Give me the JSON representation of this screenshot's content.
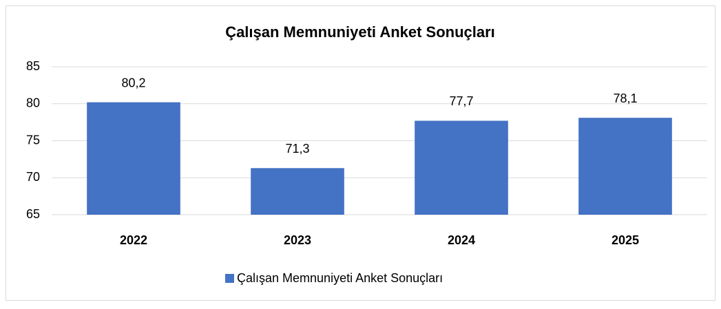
{
  "chart_data": {
    "type": "bar",
    "title": "Çalışan Memnuniyeti Anket Sonuçları",
    "categories": [
      "2022",
      "2023",
      "2024",
      "2025"
    ],
    "series": [
      {
        "name": "Çalışan Memnuniyeti Anket Sonuçları",
        "color": "#4472c4",
        "values": [
          80.2,
          71.3,
          77.7,
          78.1
        ],
        "value_labels": [
          "80,2",
          "71,3",
          "77,7",
          "78,1"
        ]
      }
    ],
    "ylim": [
      65,
      85
    ],
    "yticks": [
      65,
      70,
      75,
      80,
      85
    ],
    "grid": true,
    "legend": "bottom"
  }
}
